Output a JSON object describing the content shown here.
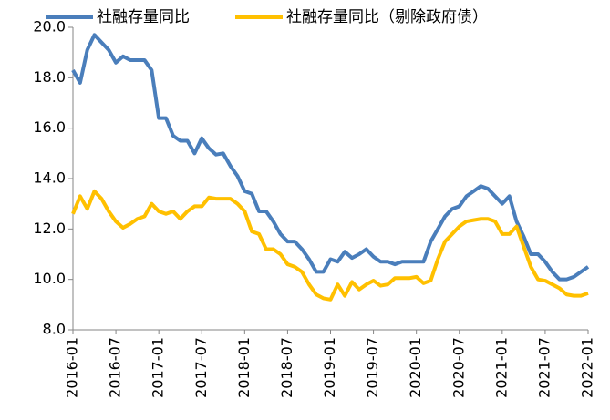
{
  "chart_data": {
    "type": "line",
    "categories": [
      "2016-01",
      null,
      null,
      null,
      null,
      null,
      "2016-07",
      null,
      null,
      null,
      null,
      null,
      "2017-01",
      null,
      null,
      null,
      null,
      null,
      "2017-07",
      null,
      null,
      null,
      null,
      null,
      "2018-01",
      null,
      null,
      null,
      null,
      null,
      "2018-07",
      null,
      null,
      null,
      null,
      null,
      "2019-01",
      null,
      null,
      null,
      null,
      null,
      "2019-07",
      null,
      null,
      null,
      null,
      null,
      "2020-01",
      null,
      null,
      null,
      null,
      null,
      "2020-07",
      null,
      null,
      null,
      null,
      null,
      "2021-01",
      null,
      null,
      null,
      null,
      null,
      "2021-07",
      null,
      null,
      null,
      null,
      null,
      "2022-01"
    ],
    "series": [
      {
        "name": "社融存量同比",
        "color": "#4a7ebb",
        "values": [
          18.3,
          17.8,
          19.1,
          19.7,
          19.4,
          19.1,
          18.6,
          18.85,
          18.7,
          18.7,
          18.7,
          18.3,
          16.4,
          16.4,
          15.7,
          15.5,
          15.5,
          15.0,
          15.6,
          15.2,
          14.95,
          15.0,
          14.5,
          14.1,
          13.5,
          13.4,
          12.7,
          12.7,
          12.3,
          11.8,
          11.5,
          11.5,
          11.2,
          10.8,
          10.3,
          10.3,
          10.8,
          10.7,
          11.1,
          10.85,
          11.0,
          11.2,
          10.9,
          10.7,
          10.7,
          10.6,
          10.7,
          10.7,
          10.7,
          10.7,
          11.5,
          12.0,
          12.5,
          12.8,
          12.9,
          13.3,
          13.5,
          13.7,
          13.6,
          13.3,
          13.0,
          13.3,
          12.3,
          11.7,
          11.0,
          11.0,
          10.7,
          10.3,
          10.0,
          10.0,
          10.1,
          10.3,
          10.5
        ]
      },
      {
        "name": "社融存量同比（剔除政府债）",
        "color": "#ffc000",
        "values": [
          12.6,
          13.3,
          12.8,
          13.5,
          13.2,
          12.7,
          12.3,
          12.05,
          12.2,
          12.4,
          12.5,
          13.0,
          12.7,
          12.6,
          12.7,
          12.4,
          12.7,
          12.9,
          12.9,
          13.25,
          13.2,
          13.2,
          13.2,
          13.0,
          12.7,
          11.9,
          11.8,
          11.2,
          11.2,
          11.0,
          10.6,
          10.5,
          10.3,
          9.8,
          9.4,
          9.25,
          9.2,
          9.8,
          9.35,
          9.9,
          9.6,
          9.8,
          9.95,
          9.75,
          9.8,
          10.05,
          10.05,
          10.05,
          10.1,
          9.85,
          9.95,
          10.8,
          11.5,
          11.8,
          12.1,
          12.3,
          12.35,
          12.4,
          12.4,
          12.3,
          11.8,
          11.8,
          12.1,
          11.3,
          10.5,
          10.0,
          9.95,
          9.8,
          9.65,
          9.4,
          9.35,
          9.35,
          9.45
        ]
      }
    ],
    "ylim": [
      8,
      20
    ],
    "yticks": [
      {
        "value": 8,
        "label": "8.0"
      },
      {
        "value": 10,
        "label": "10.0"
      },
      {
        "value": 12,
        "label": "12.0"
      },
      {
        "value": 14,
        "label": "14.0"
      },
      {
        "value": 16,
        "label": "16.0"
      },
      {
        "value": 18,
        "label": "18.0"
      },
      {
        "value": 20,
        "label": "20.0"
      }
    ],
    "grid": false
  }
}
